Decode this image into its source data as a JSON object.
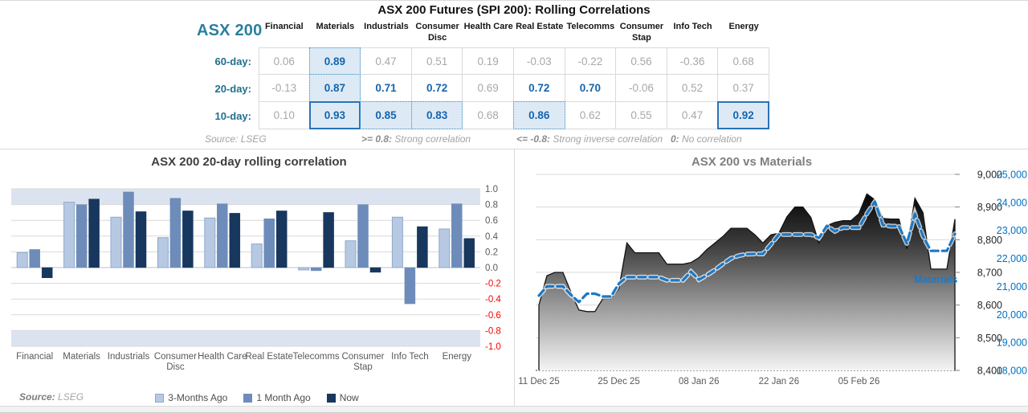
{
  "header": {
    "title": "ASX 200 Futures (SPI 200): Rolling Correlations"
  },
  "colors": {
    "accent_teal": "#2b7f9e",
    "row_label_teal": "#20708e",
    "value_gray": "#a8a8a8",
    "value_blue": "#1565ad",
    "highlight_bg": "#ddeaf5",
    "dotted_border": "#2e9ad6",
    "solid_border": "#2973b8",
    "band_blue": "#dce3f0",
    "negative_tick_red": "#ff0000",
    "materials_blue": "#1b79c6",
    "right_axis_blue": "#0070c0"
  },
  "correlation_panel": {
    "index_label": "ASX 200",
    "columns": [
      "Financial",
      "Materials",
      "Industrials",
      "Consumer Disc",
      "Health Care",
      "Real Estate",
      "Telecomms",
      "Consumer Stap",
      "Info Tech",
      "Energy"
    ],
    "row_labels": [
      "60-day:",
      "20-day:",
      "10-day:"
    ],
    "rows": [
      [
        "0.06",
        "0.89",
        "0.47",
        "0.51",
        "0.19",
        "-0.03",
        "-0.22",
        "0.56",
        "-0.36",
        "0.68"
      ],
      [
        "-0.13",
        "0.87",
        "0.71",
        "0.72",
        "0.69",
        "0.72",
        "0.70",
        "-0.06",
        "0.52",
        "0.37"
      ],
      [
        "0.10",
        "0.93",
        "0.85",
        "0.83",
        "0.68",
        "0.86",
        "0.62",
        "0.55",
        "0.47",
        "0.92"
      ]
    ],
    "strong_threshold": 0.695,
    "highlight_dotted": [
      [
        0,
        1
      ],
      [
        1,
        1
      ],
      [
        2,
        2
      ],
      [
        2,
        3
      ],
      [
        2,
        5
      ]
    ],
    "highlight_solid": [
      [
        2,
        1
      ],
      [
        2,
        9
      ]
    ],
    "source": "Source: LSEG",
    "notes": [
      {
        "key": ">= 0.8:",
        "text": " Strong correlation"
      },
      {
        "key": "<= -0.8:",
        "text": " Strong inverse correlation"
      },
      {
        "key": "0:",
        "text": " No correlation"
      }
    ]
  },
  "chart_data": [
    {
      "type": "bar",
      "title": "ASX 200 20-day rolling correlation",
      "categories": [
        "Financial",
        "Materials",
        "Industrials",
        "Consumer Disc",
        "Health Care",
        "Real Estate",
        "Telecomms",
        "Consumer Stap",
        "Info Tech",
        "Energy"
      ],
      "wrap_labels": [
        "Consumer Disc",
        "Consumer Stap"
      ],
      "series": [
        {
          "name": "3-Months Ago",
          "color": "#b7c9e2",
          "border": "#8fa9cc",
          "values": [
            0.19,
            0.83,
            0.64,
            0.38,
            0.63,
            0.3,
            -0.03,
            0.34,
            0.64,
            0.49
          ]
        },
        {
          "name": "1 Month Ago",
          "color": "#6d8cba",
          "border": "#6d8cba",
          "values": [
            0.23,
            0.8,
            0.96,
            0.88,
            0.81,
            0.62,
            -0.04,
            0.8,
            -0.46,
            0.81
          ]
        },
        {
          "name": "Now",
          "color": "#17375e",
          "border": "#17375e",
          "values": [
            -0.13,
            0.87,
            0.71,
            0.72,
            0.69,
            0.72,
            0.7,
            -0.06,
            0.52,
            0.37
          ]
        }
      ],
      "ylim": [
        -1.0,
        1.0
      ],
      "ytick_step": 0.2,
      "bands": [
        [
          0.8,
          1.0
        ],
        [
          -1.0,
          -0.8
        ]
      ],
      "grid": true,
      "legend_position": "bottom",
      "source_label": "Source:",
      "source_value": "LSEG"
    },
    {
      "type": "area",
      "title": "ASX 200 vs Materials",
      "x_labels": [
        "11 Dec 25",
        "25 Dec 25",
        "08 Jan 26",
        "22 Jan 26",
        "05 Feb 26"
      ],
      "x_label_positions": [
        0,
        10,
        20,
        30,
        40
      ],
      "left_axis": {
        "min": 8400,
        "max": 9000,
        "step": 100
      },
      "right_axis": {
        "min": 18000,
        "max": 25000,
        "step": 1000
      },
      "line_label": "Materials",
      "series": [
        {
          "name": "ASX 200",
          "axis": "left",
          "style": "area-gradient",
          "values": [
            8600,
            8690,
            8700,
            8700,
            8640,
            8585,
            8580,
            8580,
            8620,
            8620,
            8650,
            8790,
            8760,
            8760,
            8760,
            8760,
            8725,
            8725,
            8725,
            8730,
            8745,
            8770,
            8790,
            8810,
            8835,
            8835,
            8835,
            8815,
            8790,
            8815,
            8820,
            8870,
            8900,
            8900,
            8868,
            8790,
            8843,
            8853,
            8858,
            8858,
            8880,
            8940,
            8922,
            8865,
            8863,
            8863,
            8772,
            8927,
            8883,
            8710,
            8710,
            8710,
            8863
          ]
        },
        {
          "name": "Materials",
          "axis": "right",
          "style": "dashed-line",
          "values": [
            20670,
            21000,
            21000,
            21000,
            20700,
            20440,
            20740,
            20740,
            20640,
            20640,
            21100,
            21330,
            21330,
            21330,
            21330,
            21330,
            21215,
            21215,
            21215,
            21530,
            21240,
            21400,
            21590,
            21800,
            22000,
            22100,
            22150,
            22160,
            22160,
            22500,
            22850,
            22850,
            22850,
            22850,
            22850,
            22730,
            23165,
            22965,
            23100,
            23100,
            23100,
            23600,
            24025,
            23190,
            23150,
            23150,
            22530,
            23590,
            22800,
            22270,
            22270,
            22270,
            22875
          ]
        }
      ]
    }
  ]
}
